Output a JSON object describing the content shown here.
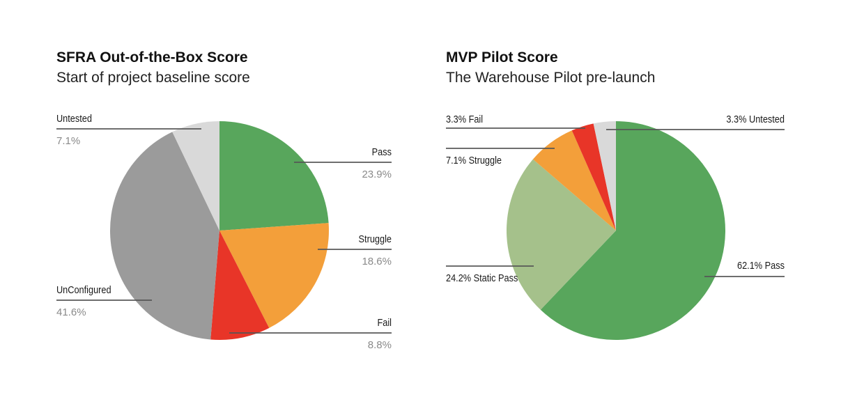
{
  "chart_data": [
    {
      "type": "pie",
      "title": "SFRA Out-of-the-Box Score",
      "subtitle": "Start of project baseline score",
      "slices": [
        {
          "label": "Pass",
          "value": 23.9,
          "pct_label": "23.9%",
          "color": "#58a65c"
        },
        {
          "label": "Struggle",
          "value": 18.6,
          "pct_label": "18.6%",
          "color": "#f39f3a"
        },
        {
          "label": "Fail",
          "value": 8.8,
          "pct_label": "8.8%",
          "color": "#e83528"
        },
        {
          "label": "UnConfigured",
          "value": 41.6,
          "pct_label": "41.6%",
          "color": "#9b9b9b"
        },
        {
          "label": "Untested",
          "value": 7.1,
          "pct_label": "7.1%",
          "color": "#d9d9d9"
        }
      ]
    },
    {
      "type": "pie",
      "title": "MVP Pilot Score",
      "subtitle": "The Warehouse Pilot pre-launch",
      "slices": [
        {
          "label": "62.1% Pass",
          "value": 62.1,
          "color": "#58a65c"
        },
        {
          "label": "24.2% Static Pass",
          "value": 24.2,
          "color": "#a5c18b"
        },
        {
          "label": "7.1% Struggle",
          "value": 7.1,
          "color": "#f39f3a"
        },
        {
          "label": "3.3% Fail",
          "value": 3.3,
          "color": "#e83528"
        },
        {
          "label": "3.3% Untested",
          "value": 3.3,
          "color": "#d9d9d9"
        }
      ]
    }
  ]
}
